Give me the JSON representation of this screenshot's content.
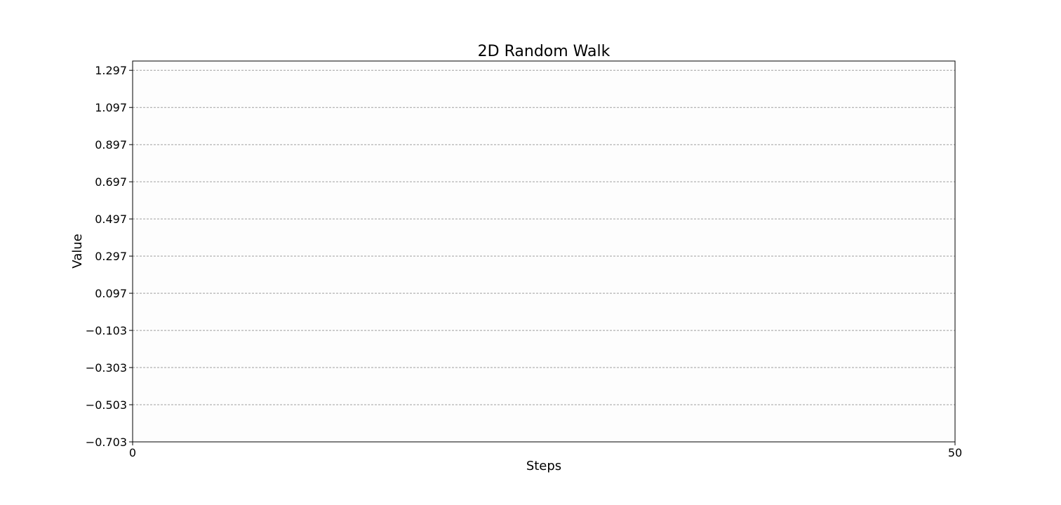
{
  "chart_data": {
    "type": "line",
    "title": "2D Random Walk",
    "xlabel": "Steps",
    "ylabel": "Value",
    "xlim": [
      0,
      50
    ],
    "ylim": [
      -0.703,
      1.347
    ],
    "x_ticks": [
      0,
      50
    ],
    "x_tick_labels": [
      "0",
      "50"
    ],
    "y_ticks": [
      -0.703,
      -0.503,
      -0.303,
      -0.103,
      0.097,
      0.297,
      0.497,
      0.697,
      0.897,
      1.097,
      1.297
    ],
    "y_tick_labels": [
      "−0.703",
      "−0.503",
      "−0.303",
      "−0.103",
      "0.097",
      "0.297",
      "0.497",
      "0.697",
      "0.897",
      "1.097",
      "1.297"
    ],
    "grid": {
      "y": true,
      "x": false,
      "style": "dashed"
    },
    "series": [],
    "colors": {
      "grid": "#a0a0a0",
      "axes": "#000000",
      "plot_background": "#fdfdfd",
      "page_background": "#ffffff"
    }
  }
}
